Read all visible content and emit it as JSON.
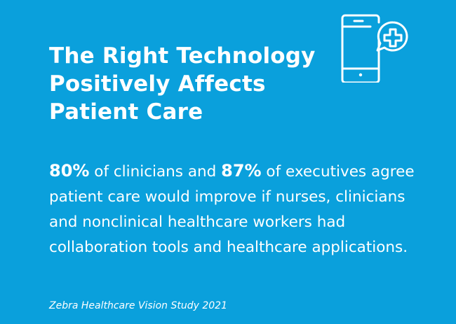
{
  "headline": {
    "line1": "The Right Technology",
    "line2": "Positively Affects",
    "line3": "Patient Care"
  },
  "icon": "smartphone-medical-cross-icon",
  "statement": {
    "stat_clinicians": "80%",
    "text_after_clinicians": " of clinicians and ",
    "stat_executives": "87%",
    "text_after_executives": " of executives agree patient care would improve if nurses, clinicians and nonclinical healthcare workers had collaboration tools and healthcare applications."
  },
  "source": "Zebra Healthcare Vision Study 2021",
  "colors": {
    "background": "#0aa0dc",
    "foreground": "#ffffff"
  }
}
